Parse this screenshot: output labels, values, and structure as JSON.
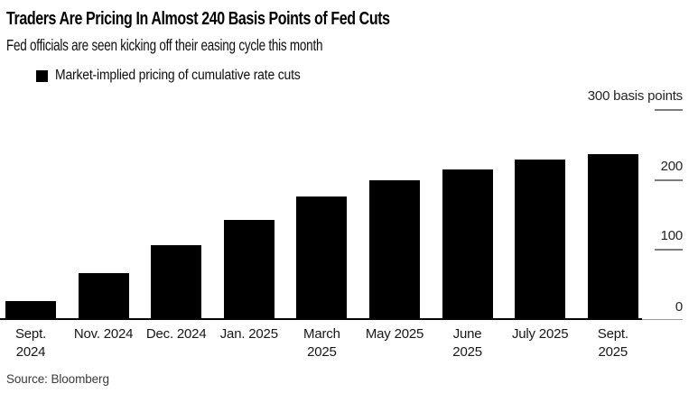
{
  "header": {
    "title": "Traders Are Pricing In Almost 240 Basis Points of Fed Cuts",
    "subtitle": "Fed officials are seen kicking off their easing cycle this month"
  },
  "legend": {
    "marker_color": "#000000",
    "label": "Market-implied pricing of cumulative rate cuts"
  },
  "chart_data": {
    "type": "bar",
    "title": "Traders Are Pricing In Almost 240 Basis Points of Fed Cuts",
    "subtitle": "Fed officials are seen kicking off their easing cycle this month",
    "series_name": "Market-implied pricing of cumulative rate cuts",
    "categories": [
      "Sept. 2024",
      "Nov. 2024",
      "Dec. 2024",
      "Jan. 2025",
      "March 2025",
      "May 2025",
      "June 2025",
      "July 2025",
      "Sept. 2025"
    ],
    "category_label_lines": [
      [
        "Sept.",
        "2024"
      ],
      [
        "Nov. 2024"
      ],
      [
        "Dec. 2024"
      ],
      [
        "Jan. 2025"
      ],
      [
        "March",
        "2025"
      ],
      [
        "May 2025"
      ],
      [
        "June",
        "2025"
      ],
      [
        "July 2025"
      ],
      [
        "Sept.",
        "2025"
      ]
    ],
    "values": [
      27,
      66,
      107,
      142,
      176,
      200,
      215,
      229,
      237
    ],
    "unit": "basis points",
    "ylabel": "basis points",
    "ylim": [
      0,
      300
    ],
    "yticks": [
      {
        "value": 300,
        "label": "300 basis points",
        "has_tick_line": true
      },
      {
        "value": 200,
        "label": "200",
        "has_tick_line": true
      },
      {
        "value": 100,
        "label": "100",
        "has_tick_line": true
      },
      {
        "value": 0,
        "label": "0",
        "has_tick_line": false
      }
    ],
    "bar_color": "#000000",
    "axis_label_side": "right",
    "grid": false,
    "legend_position": "top-left"
  },
  "source": {
    "text": "Source: Bloomberg"
  }
}
